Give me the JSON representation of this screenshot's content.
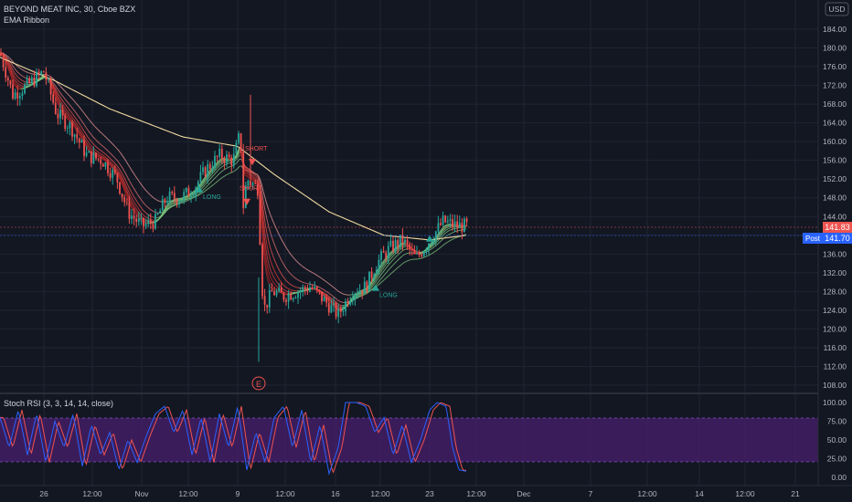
{
  "header": {
    "symbol_line": "BEYOND MEAT INC, 30, Cboe BZX",
    "indicator": "EMA Ribbon",
    "currency": "USD"
  },
  "rsi_panel": {
    "title": "Stoch RSI (3, 3, 14, 14, close)"
  },
  "price_badges": {
    "last": "141.83",
    "post_label": "Post",
    "post": "141.70"
  },
  "event_marker": "E",
  "colors": {
    "background": "#131722",
    "grid": "#1f2433",
    "up": "#26a69a",
    "down": "#ef5350",
    "ema200": "#f0d9a0",
    "rsi_k": "#2962ff",
    "rsi_d": "#ef5350",
    "rsi_band": "#4a1f6e"
  },
  "chart_data": [
    {
      "type": "candlestick",
      "price_axis_ticks": [
        "184.00",
        "180.00",
        "176.00",
        "172.00",
        "168.00",
        "164.00",
        "160.00",
        "156.00",
        "152.00",
        "148.00",
        "144.00",
        "140.00",
        "136.00",
        "132.00",
        "128.00",
        "124.00",
        "120.00",
        "116.00",
        "112.00",
        "108.00"
      ],
      "time_axis_ticks": [
        "26",
        "12:00",
        "Nov",
        "12:00",
        "9",
        "12:00",
        "16",
        "12:00",
        "23",
        "12:00",
        "Dec",
        "7",
        "12:00",
        "14",
        "12:00",
        "21"
      ],
      "ylim": [
        106,
        186
      ],
      "close_path": [
        {
          "t": 0,
          "p": 179
        },
        {
          "t": 14,
          "p": 170
        },
        {
          "t": 30,
          "p": 172
        },
        {
          "t": 48,
          "p": 175
        },
        {
          "t": 62,
          "p": 166
        },
        {
          "t": 78,
          "p": 163
        },
        {
          "t": 95,
          "p": 157
        },
        {
          "t": 112,
          "p": 156
        },
        {
          "t": 128,
          "p": 152
        },
        {
          "t": 140,
          "p": 145
        },
        {
          "t": 155,
          "p": 142
        },
        {
          "t": 170,
          "p": 143
        },
        {
          "t": 182,
          "p": 148
        },
        {
          "t": 198,
          "p": 148
        },
        {
          "t": 212,
          "p": 150
        },
        {
          "t": 225,
          "p": 154
        },
        {
          "t": 240,
          "p": 157
        },
        {
          "t": 255,
          "p": 156
        },
        {
          "t": 263,
          "p": 162
        },
        {
          "t": 266,
          "p": 146
        },
        {
          "t": 270,
          "p": 152
        },
        {
          "t": 282,
          "p": 150
        },
        {
          "t": 288,
          "p": 124
        },
        {
          "t": 298,
          "p": 128
        },
        {
          "t": 310,
          "p": 127
        },
        {
          "t": 325,
          "p": 128
        },
        {
          "t": 340,
          "p": 129
        },
        {
          "t": 355,
          "p": 126
        },
        {
          "t": 370,
          "p": 123
        },
        {
          "t": 385,
          "p": 128
        },
        {
          "t": 400,
          "p": 129
        },
        {
          "t": 412,
          "p": 134
        },
        {
          "t": 425,
          "p": 137
        },
        {
          "t": 440,
          "p": 139
        },
        {
          "t": 455,
          "p": 135
        },
        {
          "t": 470,
          "p": 139
        },
        {
          "t": 485,
          "p": 143
        },
        {
          "t": 500,
          "p": 142
        },
        {
          "t": 511,
          "p": 142
        }
      ],
      "ema200_path": [
        {
          "t": 0,
          "p": 178
        },
        {
          "t": 60,
          "p": 173
        },
        {
          "t": 120,
          "p": 167
        },
        {
          "t": 200,
          "p": 161
        },
        {
          "t": 260,
          "p": 159
        },
        {
          "t": 300,
          "p": 153
        },
        {
          "t": 360,
          "p": 145
        },
        {
          "t": 420,
          "p": 140
        },
        {
          "t": 470,
          "p": 139
        },
        {
          "t": 510,
          "p": 140
        }
      ],
      "signals": [
        {
          "t": 218,
          "p": 150.5,
          "label": "LONG",
          "side": "long"
        },
        {
          "t": 276,
          "p": 156.5,
          "label": "SHORT",
          "side": "short"
        },
        {
          "t": 270,
          "p": 148,
          "label": "SHORT",
          "side": "short"
        },
        {
          "t": 411,
          "p": 129.5,
          "label": "LONG",
          "side": "long"
        },
        {
          "t": 470,
          "p": 140,
          "label": "",
          "side": "long"
        }
      ]
    },
    {
      "type": "line",
      "title": "Stoch RSI (3, 3, 14, 14, close)",
      "y_axis_ticks": [
        "100.00",
        "75.00",
        "50.00",
        "25.00",
        "0.00"
      ],
      "ylim": [
        0,
        100
      ],
      "bands": [
        20,
        80
      ],
      "k_path": [
        {
          "t": 0,
          "v": 80
        },
        {
          "t": 10,
          "v": 40
        },
        {
          "t": 20,
          "v": 90
        },
        {
          "t": 30,
          "v": 30
        },
        {
          "t": 40,
          "v": 85
        },
        {
          "t": 50,
          "v": 20
        },
        {
          "t": 60,
          "v": 75
        },
        {
          "t": 70,
          "v": 40
        },
        {
          "t": 80,
          "v": 85
        },
        {
          "t": 90,
          "v": 15
        },
        {
          "t": 100,
          "v": 70
        },
        {
          "t": 110,
          "v": 30
        },
        {
          "t": 120,
          "v": 60
        },
        {
          "t": 130,
          "v": 10
        },
        {
          "t": 140,
          "v": 50
        },
        {
          "t": 150,
          "v": 20
        },
        {
          "t": 160,
          "v": 55
        },
        {
          "t": 170,
          "v": 85
        },
        {
          "t": 180,
          "v": 95
        },
        {
          "t": 190,
          "v": 60
        },
        {
          "t": 200,
          "v": 90
        },
        {
          "t": 210,
          "v": 30
        },
        {
          "t": 220,
          "v": 80
        },
        {
          "t": 230,
          "v": 20
        },
        {
          "t": 240,
          "v": 85
        },
        {
          "t": 250,
          "v": 40
        },
        {
          "t": 260,
          "v": 95
        },
        {
          "t": 270,
          "v": 10
        },
        {
          "t": 280,
          "v": 60
        },
        {
          "t": 290,
          "v": 20
        },
        {
          "t": 300,
          "v": 80
        },
        {
          "t": 310,
          "v": 95
        },
        {
          "t": 320,
          "v": 40
        },
        {
          "t": 330,
          "v": 90
        },
        {
          "t": 340,
          "v": 20
        },
        {
          "t": 350,
          "v": 70
        },
        {
          "t": 360,
          "v": 5
        },
        {
          "t": 370,
          "v": 40
        },
        {
          "t": 378,
          "v": 100
        },
        {
          "t": 390,
          "v": 100
        },
        {
          "t": 400,
          "v": 95
        },
        {
          "t": 410,
          "v": 60
        },
        {
          "t": 420,
          "v": 80
        },
        {
          "t": 430,
          "v": 30
        },
        {
          "t": 440,
          "v": 70
        },
        {
          "t": 450,
          "v": 20
        },
        {
          "t": 460,
          "v": 50
        },
        {
          "t": 470,
          "v": 90
        },
        {
          "t": 478,
          "v": 100
        },
        {
          "t": 488,
          "v": 95
        },
        {
          "t": 495,
          "v": 40
        },
        {
          "t": 502,
          "v": 10
        },
        {
          "t": 511,
          "v": 8
        }
      ]
    }
  ]
}
